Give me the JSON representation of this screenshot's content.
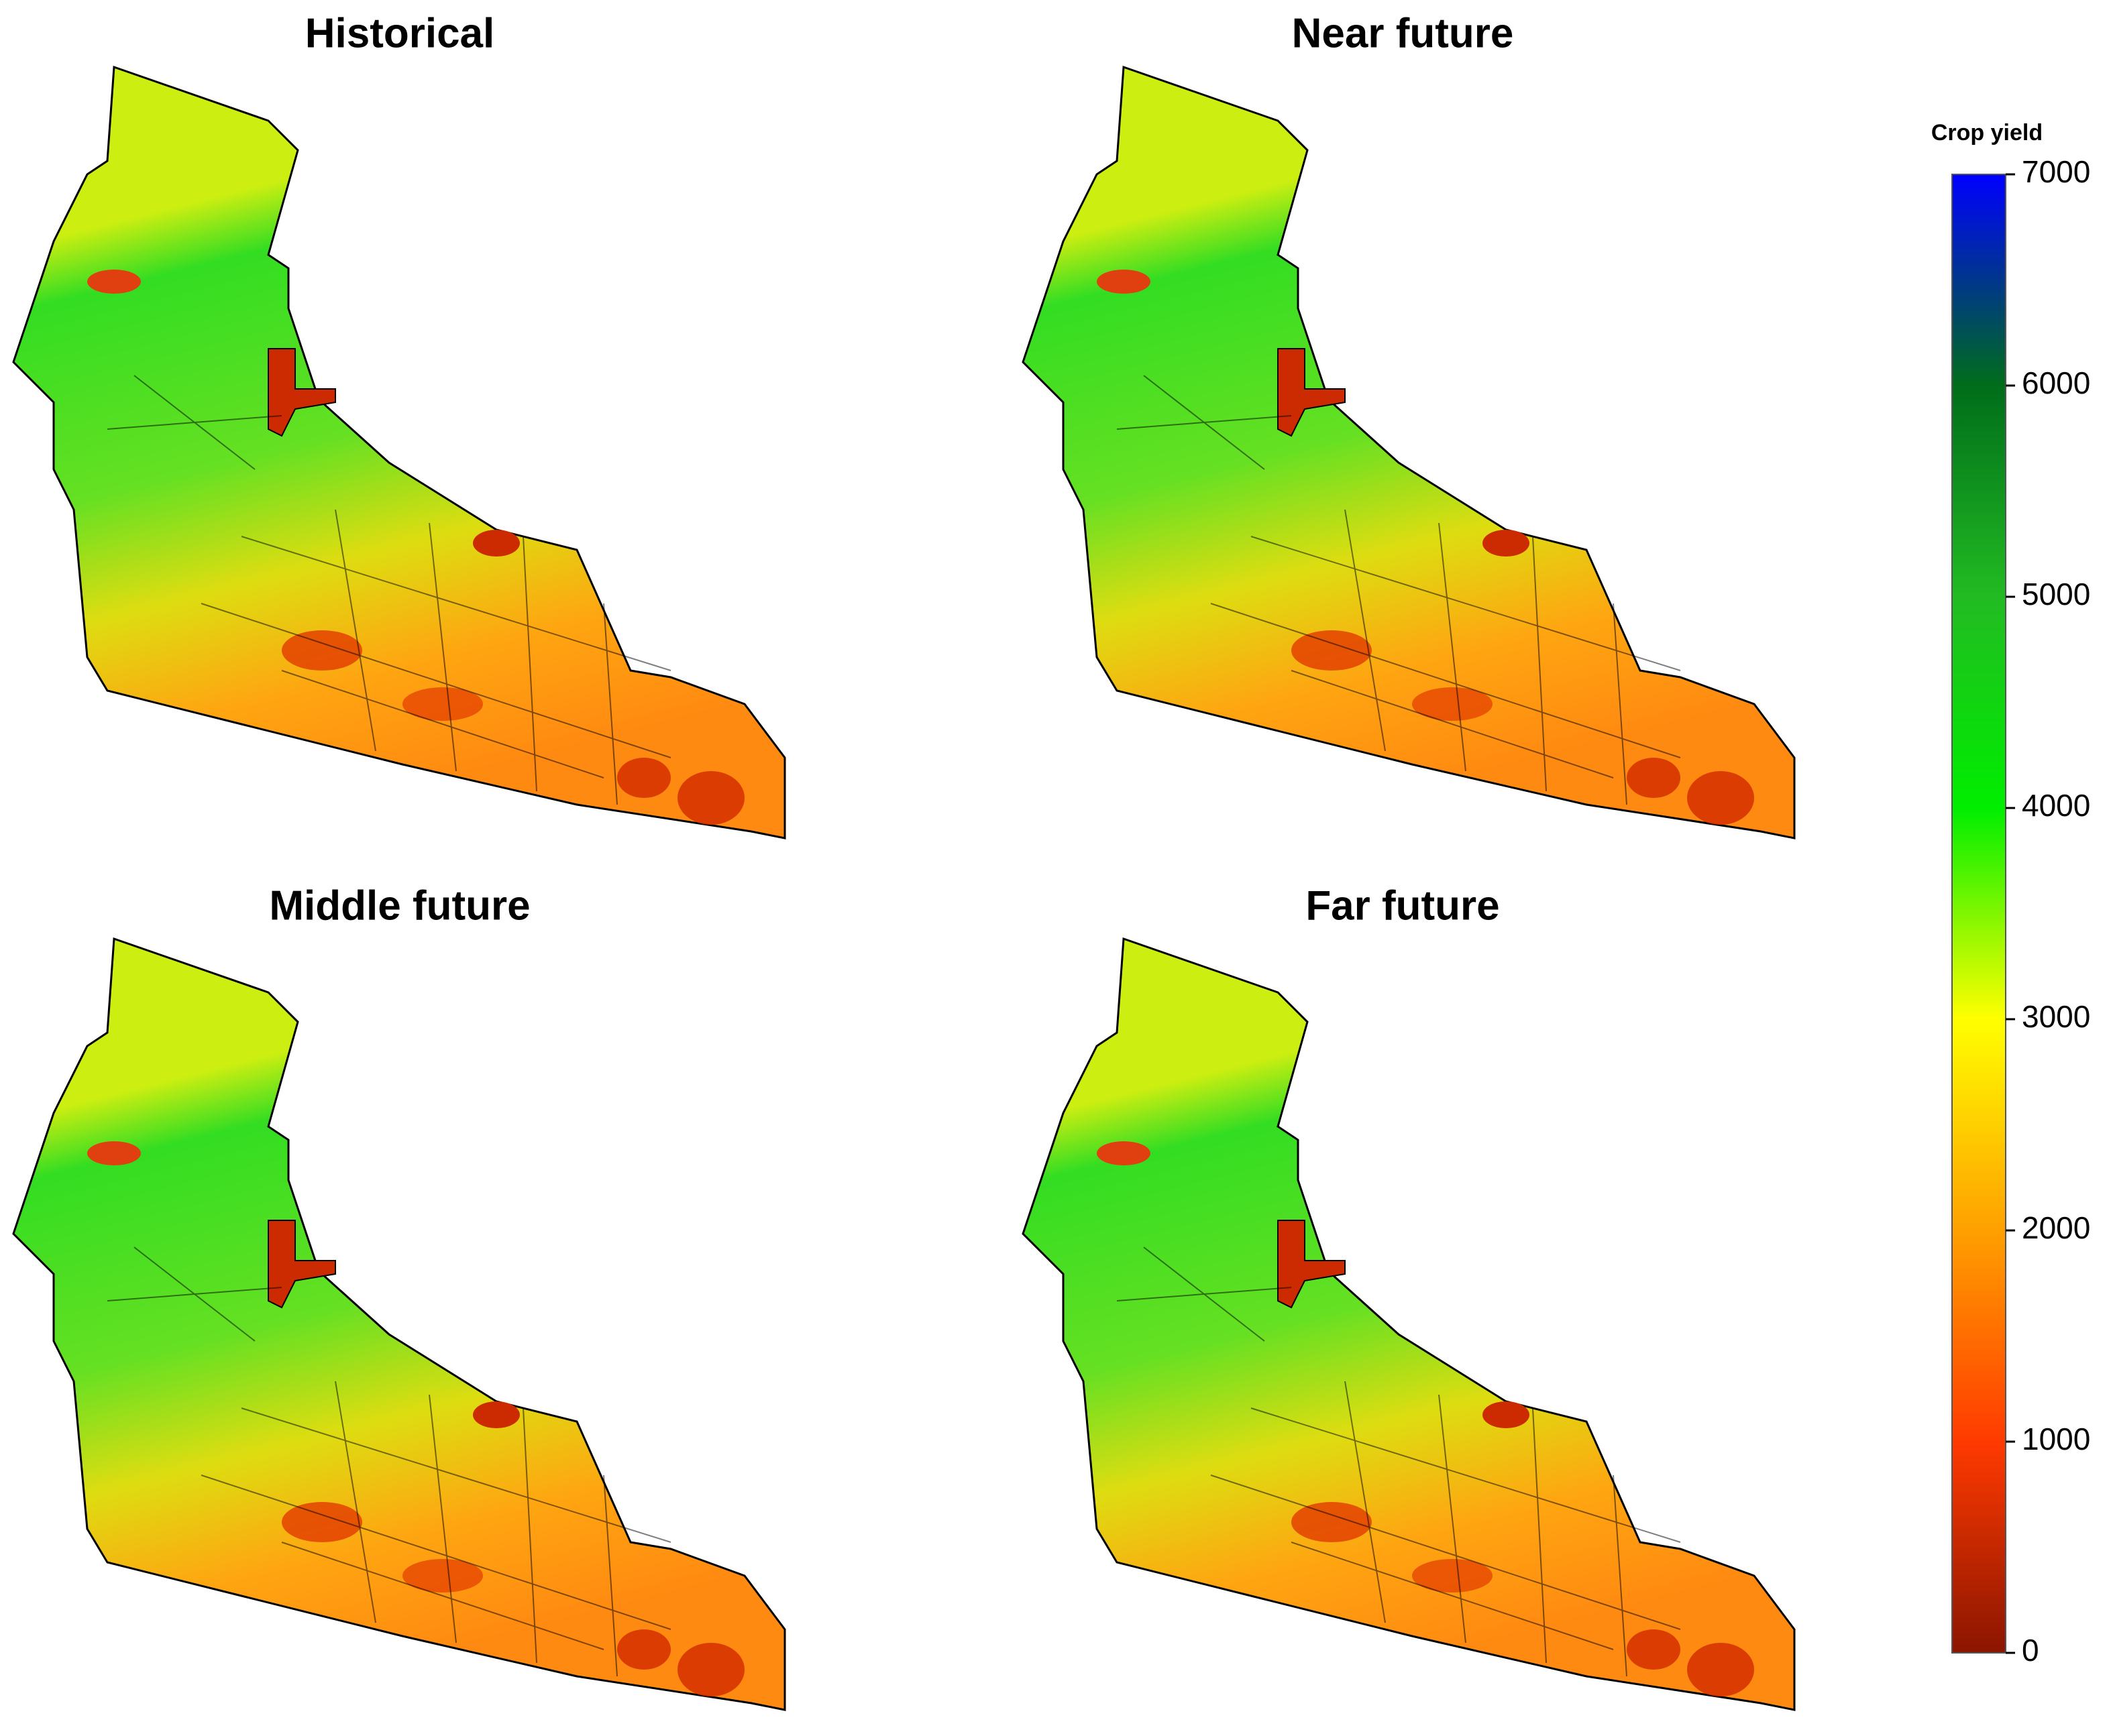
{
  "panels": [
    {
      "title": "Historical"
    },
    {
      "title": "Near future"
    },
    {
      "title": "Middle future"
    },
    {
      "title": "Far future"
    }
  ],
  "legend": {
    "title": "Crop yield",
    "range": [
      0,
      7000
    ],
    "ticks": [
      0,
      1000,
      2000,
      3000,
      4000,
      5000,
      6000,
      7000
    ],
    "colors": [
      "#8b1500",
      "#ff3a00",
      "#ffa000",
      "#ffff00",
      "#00ee00",
      "#22bb22",
      "#006d1a",
      "#0000ff"
    ]
  }
}
